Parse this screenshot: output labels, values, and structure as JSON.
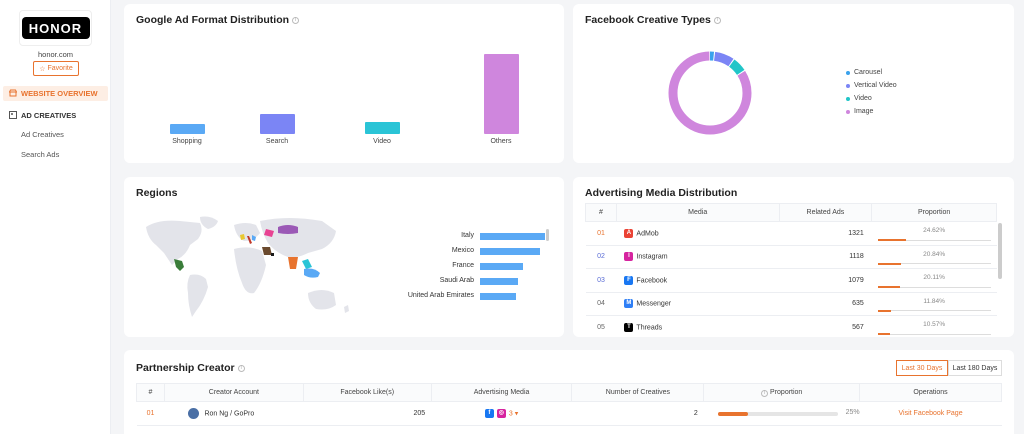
{
  "sidebar": {
    "logo_text": "HONOR",
    "domain": "honor.com",
    "favorite_label": "Favorite",
    "website_overview": "WEBSITE OVERVIEW",
    "ad_creatives_header": "AD CREATIVES",
    "sub_items": [
      "Ad Creatives",
      "Search Ads"
    ]
  },
  "google": {
    "title": "Google Ad Format Distribution",
    "chart_data": {
      "type": "bar",
      "categories": [
        "Shopping",
        "Search",
        "Video",
        "Others"
      ],
      "values": [
        12,
        25,
        15,
        100
      ],
      "colors": [
        "#5aa9f5",
        "#7b85f5",
        "#2ac4d6",
        "#cf86dd"
      ]
    }
  },
  "facebook": {
    "title": "Facebook Creative Types",
    "chart_data": {
      "type": "pie",
      "categories": [
        "Carousel",
        "Vertical Video",
        "Video",
        "Image"
      ],
      "values": [
        2,
        8,
        6,
        84
      ],
      "colors": [
        "#3aa2ec",
        "#7b85f5",
        "#21c5c8",
        "#cf86dd"
      ]
    }
  },
  "regions": {
    "title": "Regions",
    "chart_data": {
      "type": "bar",
      "categories": [
        "Italy",
        "Mexico",
        "France",
        "Saudi Arab",
        "United Arab Emirates"
      ],
      "values": [
        100,
        92,
        66,
        58,
        56
      ]
    }
  },
  "media": {
    "title": "Advertising Media Distribution",
    "headers": [
      "#",
      "Media",
      "Related Ads",
      "Proportion"
    ],
    "rows": [
      {
        "rank": "01",
        "name": "AdMob",
        "ads": "1321",
        "prop": "24.62%",
        "frac": 0.2462,
        "icon": "admob-icon",
        "color": "#ea4335"
      },
      {
        "rank": "02",
        "name": "Instagram",
        "ads": "1118",
        "prop": "20.84%",
        "frac": 0.2084,
        "icon": "instagram-icon",
        "color": "#d6249f"
      },
      {
        "rank": "03",
        "name": "Facebook",
        "ads": "1079",
        "prop": "20.11%",
        "frac": 0.2011,
        "icon": "facebook-icon",
        "color": "#1877f2"
      },
      {
        "rank": "04",
        "name": "Messenger",
        "ads": "635",
        "prop": "11.84%",
        "frac": 0.1184,
        "icon": "messenger-icon",
        "color": "#2f7ff6"
      },
      {
        "rank": "05",
        "name": "Threads",
        "ads": "567",
        "prop": "10.57%",
        "frac": 0.1057,
        "icon": "threads-icon",
        "color": "#000000"
      }
    ]
  },
  "partner": {
    "title": "Partnership Creator",
    "tabs": [
      "Last 30 Days",
      "Last 180 Days"
    ],
    "headers": [
      "#",
      "Creator Account",
      "Facebook Like(s)",
      "Advertising Media",
      "Number of Creatives",
      "Proportion",
      "Operations"
    ],
    "rows": [
      {
        "rank": "01",
        "account": "Ron Ng / GoPro",
        "likes": "205",
        "media_count": "3",
        "creatives": "2",
        "prop": "25%",
        "frac": 0.25,
        "op": "Visit Facebook Page"
      }
    ]
  }
}
